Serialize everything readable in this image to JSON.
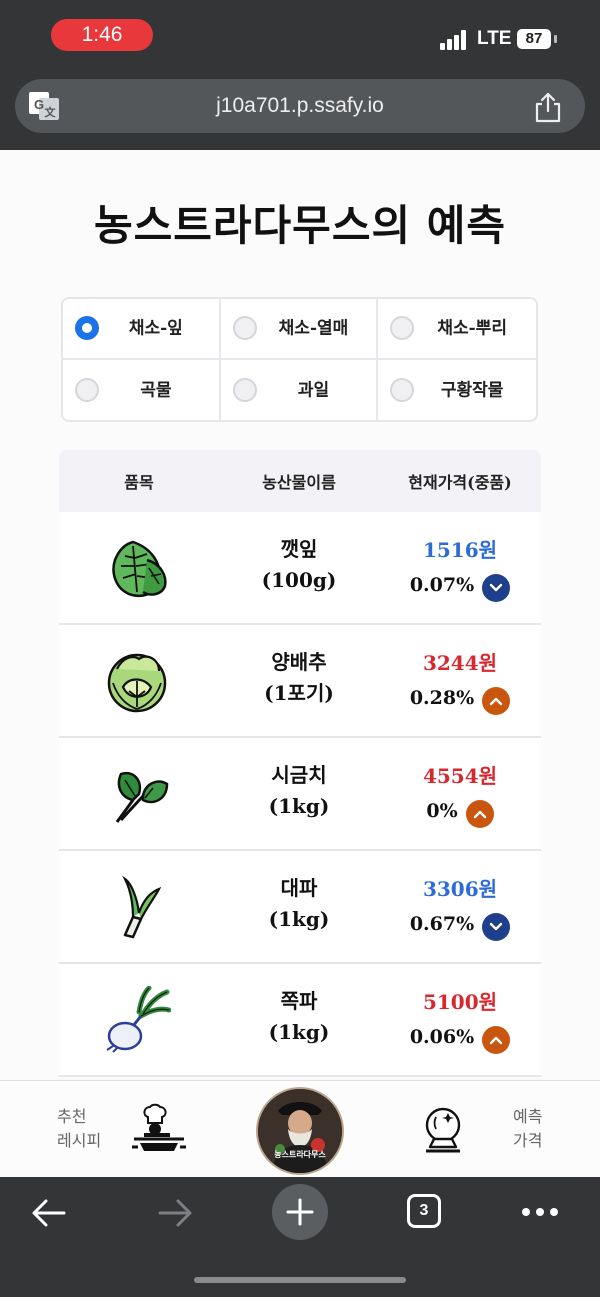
{
  "status_bar": {
    "time": "1:46",
    "network": "LTE",
    "battery": "87"
  },
  "browser": {
    "url": "j10a701.p.ssafy.io",
    "tab_count": "3"
  },
  "page": {
    "title": "농스트라다무스의 예측"
  },
  "categories": [
    {
      "label": "채소-잎",
      "checked": true
    },
    {
      "label": "채소-열매",
      "checked": false
    },
    {
      "label": "채소-뿌리",
      "checked": false
    },
    {
      "label": "곡물",
      "checked": false
    },
    {
      "label": "과일",
      "checked": false
    },
    {
      "label": "구황작물",
      "checked": false
    }
  ],
  "table": {
    "headers": [
      "품목",
      "농산물이름",
      "현재가격(중품)"
    ],
    "rows": [
      {
        "icon": "perilla-leaf-icon",
        "name": "깻잎",
        "unit": "(100g)",
        "price": "1516원",
        "change": "0.07%",
        "trend": "down"
      },
      {
        "icon": "cabbage-icon",
        "name": "양배추",
        "unit": "(1포기)",
        "price": "3244원",
        "change": "0.28%",
        "trend": "up"
      },
      {
        "icon": "spinach-icon",
        "name": "시금치",
        "unit": "(1kg)",
        "price": "4554원",
        "change": "0%",
        "trend": "up"
      },
      {
        "icon": "leek-icon",
        "name": "대파",
        "unit": "(1kg)",
        "price": "3306원",
        "change": "0.67%",
        "trend": "down"
      },
      {
        "icon": "scallion-icon",
        "name": "쪽파",
        "unit": "(1kg)",
        "price": "5100원",
        "change": "0.06%",
        "trend": "up"
      }
    ]
  },
  "bottom_nav": {
    "left_line1": "추천",
    "left_line2": "레시피",
    "center_logo": "농스트라다무스",
    "right_line1": "예측",
    "right_line2": "가격"
  },
  "colors": {
    "accent_blue": "#1a73e8",
    "price_down": "#2d6bd6",
    "price_up": "#d9272e"
  }
}
